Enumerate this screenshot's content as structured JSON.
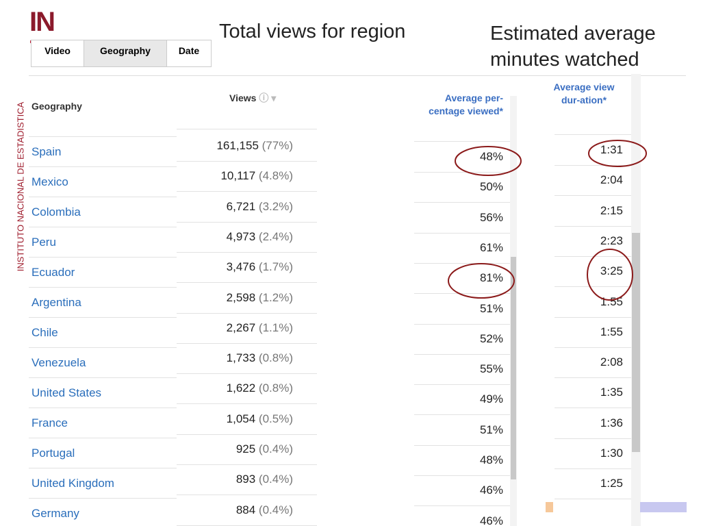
{
  "logo": "IN",
  "side_text": "INSTITUTO NACIONAL DE ESTADISTICA",
  "tabs": [
    "Video",
    "Geography",
    "Date"
  ],
  "annotations": [
    "Total views for region",
    "Estimated average minutes watched"
  ],
  "table": {
    "headers": [
      "Geography",
      "Views",
      "Average per-centage viewed*",
      "Average view dur-ation*"
    ],
    "rows": [
      [
        "Spain",
        "161,155",
        "(77%)",
        "48%",
        "1:31"
      ],
      [
        "Mexico",
        "10,117",
        "(4.8%)",
        "50%",
        "2:04"
      ],
      [
        "Colombia",
        "6,721",
        "(3.2%)",
        "56%",
        "2:15"
      ],
      [
        "Peru",
        "4,973",
        "(2.4%)",
        "61%",
        "2:23"
      ],
      [
        "Ecuador",
        "3,476",
        "(1.7%)",
        "81%",
        "3:25"
      ],
      [
        "Argentina",
        "2,598",
        "(1.2%)",
        "51%",
        "1:55"
      ],
      [
        "Chile",
        "2,267",
        "(1.1%)",
        "52%",
        "1:55"
      ],
      [
        "Venezuela",
        "1,733",
        "(0.8%)",
        "55%",
        "2:08"
      ],
      [
        "United States",
        "1,622",
        "(0.8%)",
        "49%",
        "1:35"
      ],
      [
        "France",
        "1,054",
        "(0.5%)",
        "51%",
        "1:36"
      ],
      [
        "Portugal",
        "925",
        "(0.4%)",
        "48%",
        "1:30"
      ],
      [
        "United Kingdom",
        "893",
        "(0.4%)",
        "46%",
        "1:25"
      ],
      [
        "Germany",
        "884",
        "(0.4%)",
        "46%",
        null
      ]
    ]
  }
}
